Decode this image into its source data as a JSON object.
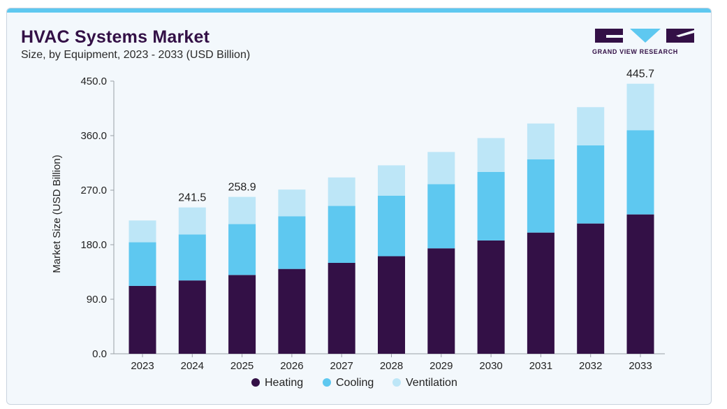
{
  "header": {
    "title": "HVAC Systems Market",
    "subtitle": "Size, by Equipment, 2023 - 2033 (USD Billion)"
  },
  "logo": {
    "text": "GRAND VIEW RESEARCH"
  },
  "colors": {
    "heating": "#331046",
    "cooling": "#5ec8f0",
    "ventilation": "#bde6f7",
    "accent_bar": "#5ec8f0"
  },
  "chart_data": {
    "type": "bar",
    "stacked": true,
    "title": "HVAC Systems Market",
    "subtitle": "Size, by Equipment, 2023 - 2033 (USD Billion)",
    "xlabel": "",
    "ylabel": "Market Size (USD Billion)",
    "ylim": [
      0,
      450
    ],
    "yticks": [
      "0.0",
      "90.0",
      "180.0",
      "270.0",
      "360.0",
      "450.0"
    ],
    "grid": false,
    "legend_position": "bottom",
    "categories": [
      "2023",
      "2024",
      "2025",
      "2026",
      "2027",
      "2028",
      "2029",
      "2030",
      "2031",
      "2032",
      "2033"
    ],
    "series": [
      {
        "name": "Heating",
        "color": "#331046",
        "values": [
          112,
          121,
          130,
          140,
          150,
          161,
          174,
          187,
          200,
          215,
          230
        ]
      },
      {
        "name": "Cooling",
        "color": "#5ec8f0",
        "values": [
          72,
          76,
          84,
          87,
          94,
          100,
          106,
          113,
          121,
          129,
          139
        ]
      },
      {
        "name": "Ventilation",
        "color": "#bde6f7",
        "values": [
          36,
          44.5,
          44.9,
          44,
          47,
          50,
          53,
          56,
          59,
          63,
          76.7
        ]
      }
    ],
    "total_labels": [
      {
        "category": "2024",
        "text": "241.5"
      },
      {
        "category": "2025",
        "text": "258.9"
      },
      {
        "category": "2033",
        "text": "445.7"
      }
    ]
  }
}
